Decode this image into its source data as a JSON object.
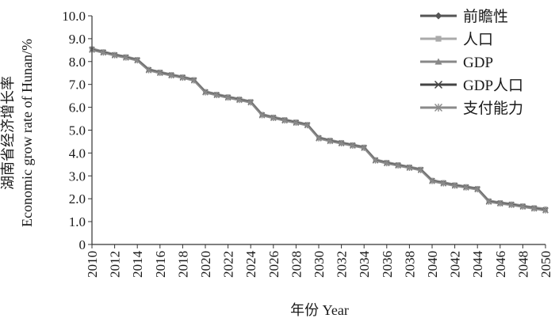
{
  "chart_data": {
    "type": "line",
    "title": "",
    "xlabel": "年份 Year",
    "ylabel_line1": "湖南省经济增长率",
    "ylabel_line2": "Economic grow rate of Hunan/%",
    "ylim": [
      0,
      10
    ],
    "yticks": [
      "0",
      "1.0",
      "2.0",
      "3.0",
      "4.0",
      "5.0",
      "6.0",
      "7.0",
      "8.0",
      "9.0",
      "10.0"
    ],
    "xlim": [
      2010,
      2050
    ],
    "xticks": [
      "2010",
      "2012",
      "2014",
      "2016",
      "2018",
      "2020",
      "2022",
      "2024",
      "2026",
      "2028",
      "2030",
      "2032",
      "2034",
      "2036",
      "2038",
      "2040",
      "2042",
      "2044",
      "2046",
      "2048",
      "2050"
    ],
    "legend_position": "top-right",
    "x": [
      2010,
      2011,
      2012,
      2013,
      2014,
      2015,
      2016,
      2017,
      2018,
      2019,
      2020,
      2021,
      2022,
      2023,
      2024,
      2025,
      2026,
      2027,
      2028,
      2029,
      2030,
      2031,
      2032,
      2033,
      2034,
      2035,
      2036,
      2037,
      2038,
      2039,
      2040,
      2041,
      2042,
      2043,
      2044,
      2045,
      2046,
      2047,
      2048,
      2049,
      2050
    ],
    "series": [
      {
        "name": "前瞻性",
        "color": "#555555",
        "marker": "diamond",
        "values": [
          8.55,
          8.42,
          8.3,
          8.2,
          8.08,
          7.65,
          7.53,
          7.42,
          7.32,
          7.2,
          6.68,
          6.56,
          6.45,
          6.35,
          6.24,
          5.68,
          5.56,
          5.45,
          5.35,
          5.24,
          4.67,
          4.55,
          4.45,
          4.35,
          4.25,
          3.7,
          3.58,
          3.48,
          3.38,
          3.28,
          2.8,
          2.7,
          2.6,
          2.52,
          2.44,
          1.9,
          1.82,
          1.76,
          1.68,
          1.6,
          1.52
        ]
      },
      {
        "name": "人口",
        "color": "#aaaaaa",
        "marker": "square",
        "values": [
          8.58,
          8.45,
          8.33,
          8.23,
          8.11,
          7.68,
          7.56,
          7.45,
          7.35,
          7.23,
          6.71,
          6.59,
          6.48,
          6.38,
          6.27,
          5.71,
          5.59,
          5.48,
          5.38,
          5.27,
          4.7,
          4.58,
          4.48,
          4.38,
          4.28,
          3.73,
          3.61,
          3.51,
          3.41,
          3.31,
          2.83,
          2.73,
          2.63,
          2.55,
          2.47,
          1.93,
          1.85,
          1.79,
          1.71,
          1.63,
          1.57
        ]
      },
      {
        "name": "GDP",
        "color": "#888888",
        "marker": "triangle",
        "values": [
          8.56,
          8.43,
          8.31,
          8.21,
          8.09,
          7.66,
          7.54,
          7.43,
          7.33,
          7.21,
          6.69,
          6.57,
          6.46,
          6.36,
          6.25,
          5.69,
          5.57,
          5.46,
          5.36,
          5.25,
          4.68,
          4.56,
          4.46,
          4.36,
          4.26,
          3.71,
          3.59,
          3.49,
          3.39,
          3.29,
          2.81,
          2.71,
          2.61,
          2.53,
          2.45,
          1.91,
          1.83,
          1.77,
          1.69,
          1.61,
          1.55
        ]
      },
      {
        "name": "GDP人口",
        "color": "#444444",
        "marker": "x",
        "values": [
          8.52,
          8.4,
          8.28,
          8.18,
          8.06,
          7.63,
          7.51,
          7.4,
          7.3,
          7.18,
          6.66,
          6.54,
          6.43,
          6.33,
          6.22,
          5.66,
          5.54,
          5.43,
          5.33,
          5.22,
          4.65,
          4.53,
          4.43,
          4.33,
          4.23,
          3.68,
          3.56,
          3.46,
          3.36,
          3.26,
          2.78,
          2.68,
          2.58,
          2.5,
          2.42,
          1.88,
          1.8,
          1.74,
          1.66,
          1.58,
          1.5
        ]
      },
      {
        "name": "支付能力",
        "color": "#8a8a8a",
        "marker": "asterisk",
        "values": [
          8.5,
          8.38,
          8.26,
          8.16,
          8.04,
          7.61,
          7.49,
          7.38,
          7.28,
          7.16,
          6.64,
          6.52,
          6.41,
          6.31,
          6.2,
          5.64,
          5.52,
          5.41,
          5.31,
          5.2,
          4.63,
          4.51,
          4.41,
          4.31,
          4.21,
          3.66,
          3.54,
          3.44,
          3.34,
          3.24,
          2.76,
          2.66,
          2.56,
          2.48,
          2.4,
          1.86,
          1.78,
          1.72,
          1.64,
          1.56,
          1.48
        ]
      }
    ]
  }
}
